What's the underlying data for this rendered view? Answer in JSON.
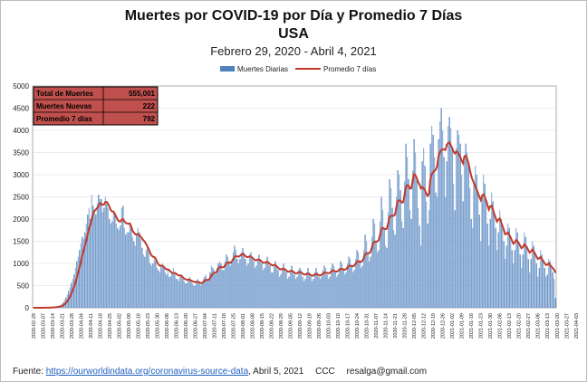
{
  "chart_data": {
    "type": "bar",
    "title": "Muertes por COVID-19 por Día y Promedio 7 Días",
    "subtitle": "USA",
    "date_range": "Febrero 29, 2020 - Abril 4, 2021",
    "ylim": [
      0,
      5000
    ],
    "y_ticks": [
      "0",
      "500",
      "1000",
      "1500",
      "2000",
      "2500",
      "3000",
      "3500",
      "4000",
      "4500",
      "5000"
    ],
    "grid": true,
    "legend_position": "top-right",
    "series": [
      {
        "name": "Muertes Diarias",
        "type": "bar",
        "color": "#4f81bd"
      },
      {
        "name": "Promedio 7 días",
        "type": "line",
        "color": "#c0392b"
      }
    ],
    "x_start": "2020-02-29",
    "x_tick_step_days": 7,
    "x_ticks": [
      "2020-02-29",
      "2020-03-07",
      "2020-03-14",
      "2020-03-21",
      "2020-03-28",
      "2020-04-04",
      "2020-04-11",
      "2020-04-18",
      "2020-04-25",
      "2020-05-02",
      "2020-05-09",
      "2020-05-16",
      "2020-05-23",
      "2020-05-30",
      "2020-06-06",
      "2020-06-13",
      "2020-06-20",
      "2020-06-27",
      "2020-07-04",
      "2020-07-11",
      "2020-07-18",
      "2020-07-25",
      "2020-08-01",
      "2020-08-08",
      "2020-08-15",
      "2020-08-22",
      "2020-08-29",
      "2020-09-05",
      "2020-09-12",
      "2020-09-19",
      "2020-09-26",
      "2020-10-03",
      "2020-10-10",
      "2020-10-17",
      "2020-10-24",
      "2020-10-31",
      "2020-11-07",
      "2020-11-14",
      "2020-11-21",
      "2020-11-28",
      "2020-12-05",
      "2020-12-12",
      "2020-12-19",
      "2020-12-26",
      "2021-01-02",
      "2021-01-09",
      "2021-01-16",
      "2021-01-23",
      "2021-01-30",
      "2021-02-06",
      "2021-02-13",
      "2021-02-20",
      "2021-02-27",
      "2021-03-06",
      "2021-03-13",
      "2021-03-20",
      "2021-03-27",
      "2021-04-03"
    ],
    "daily_deaths": [
      0,
      0,
      0,
      0,
      0,
      0,
      0,
      2,
      5,
      3,
      4,
      5,
      8,
      10,
      12,
      15,
      22,
      28,
      38,
      48,
      55,
      85,
      120,
      180,
      230,
      300,
      380,
      460,
      560,
      650,
      750,
      900,
      1050,
      1150,
      1300,
      1450,
      1600,
      1550,
      1700,
      1900,
      2100,
      2250,
      2000,
      2550,
      2300,
      2200,
      2100,
      2350,
      2550,
      2450,
      2450,
      2150,
      2250,
      2500,
      2350,
      2250,
      2000,
      1900,
      1950,
      2200,
      2150,
      1900,
      1800,
      1750,
      1850,
      2250,
      2300,
      1800,
      1650,
      1700,
      1700,
      1900,
      1800,
      1600,
      1500,
      1400,
      1650,
      1800,
      1700,
      1550,
      1350,
      1200,
      1150,
      1300,
      1400,
      1250,
      1000,
      950,
      1000,
      1100,
      1050,
      900,
      850,
      800,
      950,
      1000,
      900,
      800,
      750,
      850,
      700,
      700,
      800,
      900,
      800,
      650,
      650,
      600,
      700,
      750,
      650,
      600,
      550,
      550,
      650,
      700,
      600,
      550,
      500,
      500,
      600,
      650,
      600,
      500,
      550,
      650,
      700,
      750,
      650,
      600,
      800,
      950,
      900,
      850,
      750,
      900,
      1000,
      1050,
      1000,
      850,
      850,
      1050,
      1200,
      1150,
      1050,
      950,
      1050,
      1250,
      1400,
      1300,
      1100,
      1000,
      1100,
      1250,
      1350,
      1250,
      1100,
      950,
      1000,
      1200,
      1250,
      1150,
      1050,
      900,
      950,
      1100,
      1200,
      1100,
      1000,
      850,
      900,
      1050,
      1150,
      1050,
      950,
      800,
      800,
      950,
      1050,
      950,
      850,
      700,
      750,
      900,
      1000,
      900,
      800,
      650,
      700,
      850,
      950,
      850,
      750,
      650,
      700,
      850,
      900,
      850,
      700,
      600,
      650,
      800,
      900,
      800,
      700,
      600,
      650,
      800,
      900,
      800,
      700,
      650,
      700,
      850,
      950,
      900,
      750,
      650,
      700,
      900,
      1000,
      950,
      800,
      700,
      750,
      900,
      1050,
      1000,
      850,
      750,
      800,
      1000,
      1150,
      1100,
      950,
      800,
      850,
      1100,
      1300,
      1250,
      1050,
      900,
      950,
      1300,
      1650,
      1500,
      1250,
      1050,
      1150,
      1600,
      2000,
      1900,
      1500,
      1250,
      1300,
      1950,
      2500,
      2200,
      1800,
      1400,
      1350,
      2150,
      2900,
      2700,
      2250,
      1750,
      1650,
      2500,
      3100,
      3000,
      2650,
      1950,
      1800,
      2850,
      3700,
      3400,
      2900,
      2200,
      2000,
      3100,
      3800,
      3500,
      2950,
      2250,
      1850,
      1400,
      3300,
      3600,
      3200,
      2400,
      1900,
      2200,
      3700,
      4100,
      3900,
      3400,
      2600,
      2500,
      3800,
      4200,
      4500,
      4000,
      3400,
      2500,
      3300,
      4100,
      4300,
      4050,
      3600,
      2800,
      2200,
      3600,
      4000,
      3900,
      3700,
      3000,
      2400,
      3300,
      3700,
      3500,
      3200,
      2700,
      2000,
      1800,
      2800,
      3200,
      3000,
      2600,
      2100,
      1500,
      2500,
      3000,
      2800,
      2400,
      1900,
      1400,
      2000,
      2600,
      2400,
      2100,
      1800,
      1300,
      1700,
      2200,
      2000,
      1800,
      1500,
      1100,
      1400,
      1900,
      1800,
      1600,
      1300,
      1000,
      1300,
      1800,
      1700,
      1500,
      1200,
      900,
      1200,
      1700,
      1600,
      1400,
      1100,
      800,
      1100,
      1500,
      1400,
      1200,
      1000,
      700,
      900,
      1300,
      1200,
      1050,
      900,
      700,
      750,
      1100,
      1050,
      950,
      800,
      650,
      222
    ]
  },
  "legend": {
    "daily_label": "Muertes Diarias",
    "avg_label": "Promedio 7 días"
  },
  "stats_box": {
    "rows": [
      {
        "label": "Total de Muertes",
        "value": "555,001"
      },
      {
        "label": "Muertes Nuevas",
        "value": "222"
      },
      {
        "label": "Promedio 7 días",
        "value": "792"
      }
    ],
    "fill_color": "#c0504d"
  },
  "footer": {
    "source_label": "Fuente:",
    "source_url": "https://ourworldindata.org/coronavirus-source-data",
    "date_text": ",  Abril 5, 2021",
    "license": "CCC",
    "email": "resalga@gmail.com"
  }
}
